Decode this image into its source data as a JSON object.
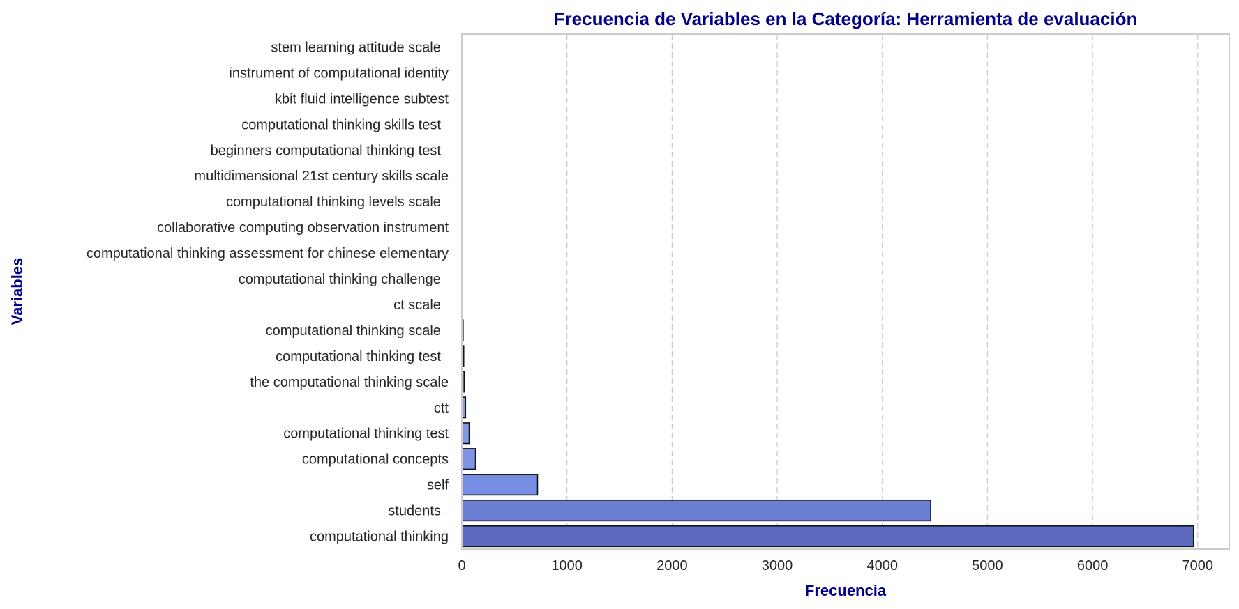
{
  "chart_data": {
    "type": "bar",
    "orientation": "horizontal",
    "title": "Frecuencia de Variables en la Categoría: Herramienta de evaluación",
    "xlabel": "Frecuencia",
    "ylabel": "Variables",
    "xlim": [
      0,
      7300
    ],
    "xticks": [
      0,
      1000,
      2000,
      3000,
      4000,
      5000,
      6000,
      7000
    ],
    "grid": "vertical dashed",
    "categories": [
      "stem learning attitude scale ",
      "instrument of computational identity",
      "kbit fluid intelligence subtest",
      "computational thinking skills test ",
      "beginners computational thinking test ",
      "multidimensional 21st century skills scale",
      "computational thinking levels scale ",
      "collaborative computing observation instrument",
      "computational thinking assessment for chinese elementary",
      "computational thinking challenge ",
      "ct scale ",
      "computational thinking scale ",
      "computational thinking test ",
      "the computational thinking scale",
      "ctt",
      "computational thinking test",
      "computational concepts",
      "self",
      "students ",
      "computational thinking"
    ],
    "values": [
      1,
      1,
      1,
      2,
      2,
      2,
      2,
      2,
      3,
      4,
      5,
      12,
      18,
      22,
      35,
      70,
      130,
      720,
      4460,
      6960
    ],
    "colors": [
      "#d7e0f6",
      "#d3ddf6",
      "#cfdaf6",
      "#cad6f6",
      "#c5d2f5",
      "#bfcdf4",
      "#b9c8f3",
      "#b3c3f3",
      "#adbef2",
      "#a7b9f1",
      "#a1b4f0",
      "#9bafef",
      "#95aaee",
      "#8fa5ed",
      "#89a0ec",
      "#839aea",
      "#7d94e7",
      "#778de3",
      "#6b80d5",
      "#5c6bc0"
    ],
    "title_color": "#00008b",
    "label_color": "#00008b"
  }
}
